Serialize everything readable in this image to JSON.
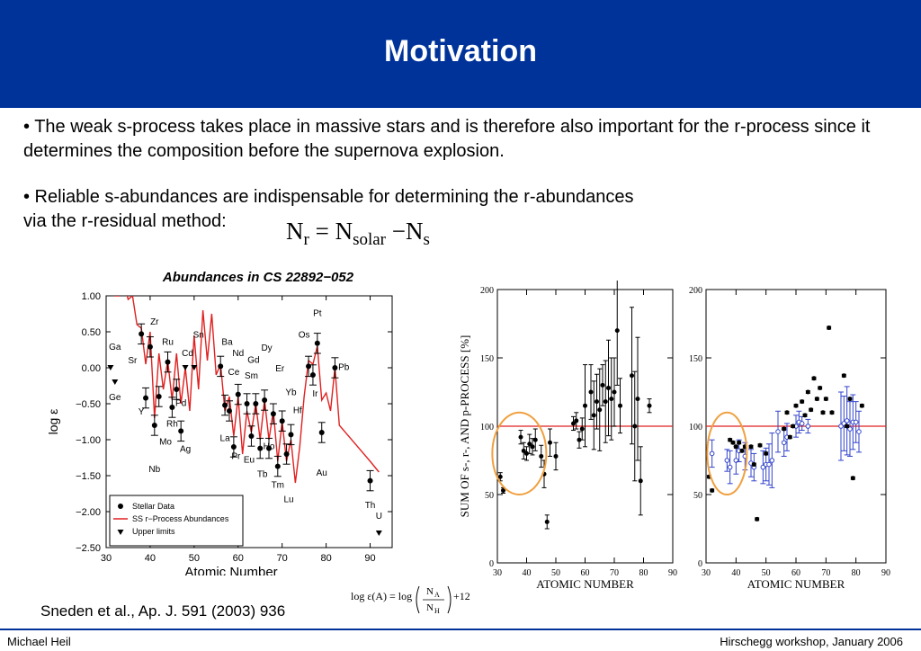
{
  "slide": {
    "title": "Motivation",
    "bullet1": "• The weak s-process takes place in massive stars and is therefore also important for the r-process since it determines the composition before the supernova explosion.",
    "bullet2_line1": "• Reliable s-abundances are indispensable for determining the r-abundances",
    "bullet2_line2": "via the r-residual method:",
    "formula": {
      "n": "N",
      "r": "r",
      "eq": "=",
      "solar": "solar",
      "minus": "−",
      "s": "s"
    },
    "log_eq": {
      "lhs": "log ε(A) = log",
      "num": "N",
      "num_sub": "A",
      "den": "N",
      "den_sub": "H",
      "rhs": "+12"
    },
    "reference": "Sneden et al., Ap. J. 591 (2003) 936",
    "footer_left": "Michael Heil",
    "footer_right": "Hirschegg workshop, January 2006",
    "colors": {
      "header": "#003399",
      "curve": "#e02020",
      "highlight": "#f0a040",
      "blue": "#3344cc"
    }
  },
  "chart_data": [
    {
      "type": "scatter",
      "title": "Abundances in CS 22892−052",
      "xlabel": "Atomic Number",
      "ylabel": "log ε",
      "xlim": [
        30,
        95
      ],
      "ylim": [
        -2.5,
        1.0
      ],
      "xticks": [
        "30",
        "40",
        "50",
        "60",
        "70",
        "80",
        "90"
      ],
      "yticks": [
        "1.00",
        "0.50",
        "0.00",
        "−0.50",
        "−1.00",
        "−1.50",
        "−2.00",
        "−2.50"
      ],
      "legend": {
        "position": "bottom-left",
        "entries": [
          "Stellar Data",
          "SS r−Process Abundances",
          "Upper limits"
        ]
      },
      "series": [
        {
          "name": "Stellar Data",
          "points": [
            [
              38,
              0.47
            ],
            [
              39,
              -0.42
            ],
            [
              40,
              0.29
            ],
            [
              41,
              -0.8
            ],
            [
              42,
              -0.4
            ],
            [
              44,
              0.08
            ],
            [
              45,
              -0.55
            ],
            [
              46,
              -0.3
            ],
            [
              47,
              -0.88
            ],
            [
              56,
              0.02
            ],
            [
              57,
              -0.52
            ],
            [
              58,
              -0.6
            ],
            [
              59,
              -1.1
            ],
            [
              60,
              -0.37
            ],
            [
              62,
              -0.5
            ],
            [
              63,
              -0.95
            ],
            [
              64,
              -0.5
            ],
            [
              65,
              -1.12
            ],
            [
              66,
              -0.45
            ],
            [
              67,
              -1.12
            ],
            [
              68,
              -0.64
            ],
            [
              69,
              -1.37
            ],
            [
              70,
              -0.74
            ],
            [
              71,
              -1.2
            ],
            [
              72,
              -0.93
            ],
            [
              76,
              0.02
            ],
            [
              77,
              -0.1
            ],
            [
              78,
              0.34
            ],
            [
              79,
              -0.9
            ],
            [
              82,
              0.0
            ],
            [
              90,
              -1.57
            ]
          ]
        },
        {
          "name": "SS r−Process Abundances",
          "points": [
            [
              31,
              1.2
            ],
            [
              32,
              1.0
            ],
            [
              33,
              1.0
            ],
            [
              34,
              1.2
            ],
            [
              35,
              0.95
            ],
            [
              36,
              1.0
            ],
            [
              37,
              0.6
            ],
            [
              38,
              0.55
            ],
            [
              39,
              0.05
            ],
            [
              40,
              0.5
            ],
            [
              41,
              -0.7
            ],
            [
              42,
              0.2
            ],
            [
              43,
              -0.3
            ],
            [
              44,
              0.1
            ],
            [
              45,
              -0.45
            ],
            [
              46,
              0.2
            ],
            [
              47,
              -0.5
            ],
            [
              48,
              0.0
            ],
            [
              49,
              -0.6
            ],
            [
              50,
              0.45
            ],
            [
              51,
              -0.3
            ],
            [
              52,
              0.8
            ],
            [
              53,
              0.1
            ],
            [
              54,
              0.75
            ],
            [
              55,
              -0.1
            ],
            [
              56,
              0.05
            ],
            [
              57,
              -0.6
            ],
            [
              58,
              -0.4
            ],
            [
              59,
              -0.95
            ],
            [
              60,
              -0.4
            ],
            [
              61,
              -1.2
            ],
            [
              62,
              -0.6
            ],
            [
              63,
              -0.9
            ],
            [
              64,
              -0.5
            ],
            [
              65,
              -1.0
            ],
            [
              66,
              -0.45
            ],
            [
              67,
              -1.0
            ],
            [
              68,
              -0.6
            ],
            [
              69,
              -1.3
            ],
            [
              70,
              -0.75
            ],
            [
              71,
              -1.3
            ],
            [
              72,
              -1.0
            ],
            [
              73,
              -1.6
            ],
            [
              74,
              -1.1
            ],
            [
              75,
              -0.4
            ],
            [
              76,
              0.1
            ],
            [
              77,
              0.05
            ],
            [
              78,
              0.3
            ],
            [
              79,
              -0.45
            ],
            [
              80,
              -0.35
            ],
            [
              81,
              -0.6
            ],
            [
              82,
              0.0
            ],
            [
              83,
              -0.8
            ],
            [
              90,
              -1.3
            ],
            [
              92,
              -1.45
            ]
          ]
        },
        {
          "name": "Upper limits",
          "points": [
            [
              31,
              0.0
            ],
            [
              32,
              -0.2
            ],
            [
              48,
              0.0
            ],
            [
              50,
              0.0
            ],
            [
              92,
              -2.3
            ]
          ]
        }
      ],
      "element_labels": [
        {
          "text": "Ga",
          "x": 32,
          "y": 0.25
        },
        {
          "text": "Ge",
          "x": 32,
          "y": -0.45
        },
        {
          "text": "Zr",
          "x": 41,
          "y": 0.6
        },
        {
          "text": "Sr",
          "x": 36,
          "y": 0.06
        },
        {
          "text": "Ru",
          "x": 44,
          "y": 0.32
        },
        {
          "text": "Y",
          "x": 38,
          "y": -0.65
        },
        {
          "text": "Nb",
          "x": 41,
          "y": -1.45
        },
        {
          "text": "Mo",
          "x": 43.5,
          "y": -1.07
        },
        {
          "text": "Rh",
          "x": 45,
          "y": -0.82
        },
        {
          "text": "Pd",
          "x": 47,
          "y": -0.53
        },
        {
          "text": "Ag",
          "x": 48,
          "y": -1.17
        },
        {
          "text": "Cd",
          "x": 48.5,
          "y": 0.16
        },
        {
          "text": "Sn",
          "x": 51,
          "y": 0.42
        },
        {
          "text": "Ba",
          "x": 57.5,
          "y": 0.32
        },
        {
          "text": "Nd",
          "x": 60,
          "y": 0.16
        },
        {
          "text": "Dy",
          "x": 66.5,
          "y": 0.24
        },
        {
          "text": "Gd",
          "x": 63.5,
          "y": 0.07
        },
        {
          "text": "Ce",
          "x": 59,
          "y": -0.1
        },
        {
          "text": "Sm",
          "x": 63,
          "y": -0.15
        },
        {
          "text": "Er",
          "x": 69.5,
          "y": -0.05
        },
        {
          "text": "La",
          "x": 57,
          "y": -1.02
        },
        {
          "text": "Pr",
          "x": 59.5,
          "y": -1.27
        },
        {
          "text": "Eu",
          "x": 62.5,
          "y": -1.32
        },
        {
          "text": "Tb",
          "x": 65.5,
          "y": -1.52
        },
        {
          "text": "Tm",
          "x": 69,
          "y": -1.67
        },
        {
          "text": "Lu",
          "x": 71.5,
          "y": -1.87
        },
        {
          "text": "Ho",
          "x": 67,
          "y": -1.13
        },
        {
          "text": "Yb",
          "x": 72,
          "y": -0.38
        },
        {
          "text": "Hf",
          "x": 73.5,
          "y": -0.63
        },
        {
          "text": "Pt",
          "x": 78,
          "y": 0.72
        },
        {
          "text": "Os",
          "x": 75,
          "y": 0.42
        },
        {
          "text": "Ir",
          "x": 77.5,
          "y": -0.4
        },
        {
          "text": "Pb",
          "x": 84,
          "y": -0.03
        },
        {
          "text": "Au",
          "x": 79,
          "y": -1.5
        },
        {
          "text": "Th",
          "x": 90,
          "y": -1.95
        },
        {
          "text": "U",
          "x": 92,
          "y": -2.1
        }
      ]
    },
    {
      "type": "scatter",
      "ylabel": "SUM OF s-, r-, AND p-PROCESS [%]",
      "xlabel": "ATOMIC NUMBER",
      "xlim": [
        30,
        90
      ],
      "ylim": [
        0,
        200
      ],
      "xticks": [
        "30",
        "40",
        "50",
        "60",
        "70",
        "80",
        "90"
      ],
      "yticks": [
        "0",
        "50",
        "100",
        "150",
        "200"
      ],
      "reference_line": 100,
      "series": [
        {
          "name": "",
          "points": [
            [
              31,
              63
            ],
            [
              32,
              53
            ],
            [
              38,
              92
            ],
            [
              39,
              82
            ],
            [
              40,
              80
            ],
            [
              41,
              87
            ],
            [
              42,
              85
            ],
            [
              43,
              90
            ],
            [
              45,
              78
            ],
            [
              46,
              65
            ],
            [
              47,
              30
            ],
            [
              48,
              88
            ],
            [
              50,
              78
            ],
            [
              56,
              102
            ],
            [
              57,
              104
            ],
            [
              58,
              90
            ],
            [
              59,
              98
            ],
            [
              60,
              115
            ],
            [
              62,
              125
            ],
            [
              63,
              108
            ],
            [
              64,
              118
            ],
            [
              65,
              112
            ],
            [
              66,
              130
            ],
            [
              67,
              118
            ],
            [
              68,
              128
            ],
            [
              69,
              120
            ],
            [
              70,
              125
            ],
            [
              71,
              170
            ],
            [
              72,
              115
            ],
            [
              76,
              137
            ],
            [
              77,
              100
            ],
            [
              78,
              120
            ],
            [
              79,
              60
            ],
            [
              82,
              115
            ]
          ],
          "err": [
            3,
            2,
            5,
            6,
            5,
            7,
            6,
            8,
            8,
            10,
            5,
            10,
            10,
            5,
            6,
            6,
            8,
            30,
            20,
            25,
            20,
            30,
            15,
            30,
            35,
            30,
            25,
            40,
            20,
            50,
            40,
            45,
            25,
            5
          ]
        }
      ]
    },
    {
      "type": "scatter",
      "xlabel": "ATOMIC NUMBER",
      "xlim": [
        30,
        90
      ],
      "ylim": [
        0,
        200
      ],
      "xticks": [
        "30",
        "40",
        "50",
        "60",
        "70",
        "80",
        "90"
      ],
      "yticks": [
        "0",
        "50",
        "100",
        "150",
        "200"
      ],
      "reference_line": 100,
      "series": [
        {
          "name": "",
          "points": [
            [
              31,
              63
            ],
            [
              32,
              53
            ],
            [
              38,
              90
            ],
            [
              39,
              88
            ],
            [
              40,
              85
            ],
            [
              41,
              88
            ],
            [
              42,
              82
            ],
            [
              43,
              85
            ],
            [
              45,
              85
            ],
            [
              46,
              72
            ],
            [
              47,
              32
            ],
            [
              48,
              86
            ],
            [
              50,
              80
            ],
            [
              56,
              98
            ],
            [
              57,
              110
            ],
            [
              58,
              92
            ],
            [
              59,
              100
            ],
            [
              60,
              115
            ],
            [
              62,
              118
            ],
            [
              63,
              108
            ],
            [
              64,
              125
            ],
            [
              65,
              112
            ],
            [
              66,
              135
            ],
            [
              67,
              120
            ],
            [
              68,
              128
            ],
            [
              69,
              110
            ],
            [
              70,
              120
            ],
            [
              71,
              172
            ],
            [
              72,
              110
            ],
            [
              76,
              137
            ],
            [
              77,
              100
            ],
            [
              78,
              120
            ],
            [
              79,
              62
            ],
            [
              82,
              115
            ]
          ]
        },
        {
          "name": "",
          "points": [
            [
              32,
              80
            ],
            [
              37,
              75
            ],
            [
              38,
              70
            ],
            [
              40,
              75
            ],
            [
              41,
              82
            ],
            [
              43,
              78
            ],
            [
              45,
              73
            ],
            [
              46,
              70
            ],
            [
              49,
              70
            ],
            [
              50,
              72
            ],
            [
              51,
              72
            ],
            [
              52,
              75
            ],
            [
              54,
              96
            ],
            [
              56,
              88
            ],
            [
              57,
              92
            ],
            [
              60,
              100
            ],
            [
              61,
              103
            ],
            [
              62,
              102
            ],
            [
              64,
              100
            ],
            [
              75,
              100
            ],
            [
              76,
              102
            ],
            [
              77,
              104
            ],
            [
              78,
              98
            ],
            [
              79,
              103
            ],
            [
              80,
              103
            ],
            [
              81,
              96
            ]
          ],
          "err": [
            10,
            8,
            12,
            10,
            8,
            10,
            10,
            10,
            12,
            12,
            15,
            20,
            15,
            10,
            10,
            8,
            8,
            5,
            5,
            25,
            20,
            25,
            20,
            20,
            15,
            15
          ]
        }
      ]
    }
  ]
}
